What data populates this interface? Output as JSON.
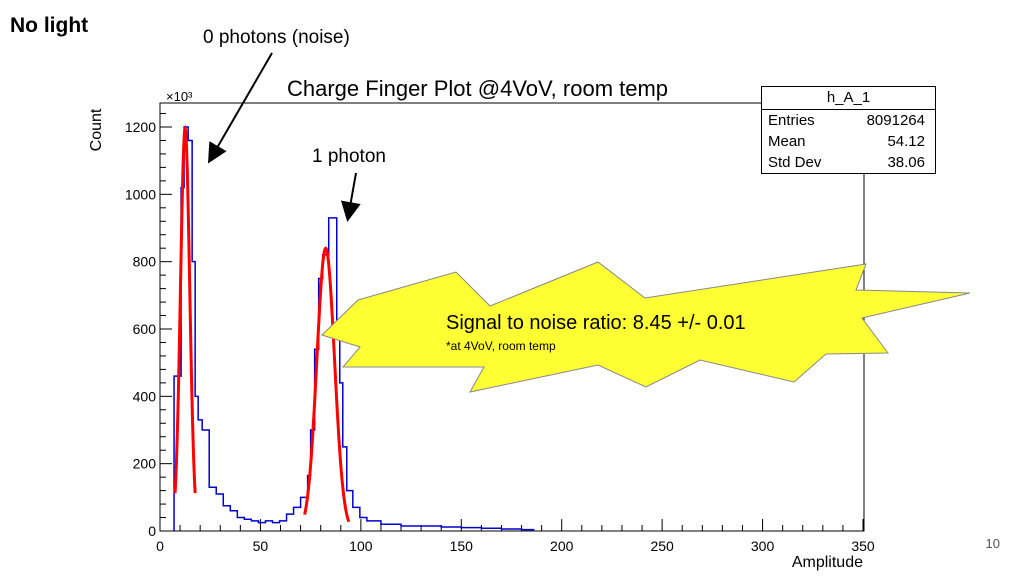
{
  "slide": {
    "title": "No light",
    "page_number": "10"
  },
  "annotations": {
    "noise_label": "0 photons (noise)",
    "photon_label": "1 photon"
  },
  "callout": {
    "main": "Signal to noise ratio: 8.45 +/- 0.01",
    "note": "*at 4VoV, room temp",
    "fill_color": "#ffff33"
  },
  "stats_box": {
    "name": "h_A_1",
    "rows": [
      {
        "label": "Entries",
        "value": "8091264"
      },
      {
        "label": "Mean",
        "value": "54.12"
      },
      {
        "label": "Std Dev",
        "value": "38.06"
      }
    ]
  },
  "chart_data": {
    "type": "histogram",
    "title": "Charge Finger Plot @4VoV, room temp",
    "xlabel": "Amplitude",
    "ylabel": "Count",
    "y_multiplier": "×10³",
    "xlim": [
      0,
      350
    ],
    "ylim": [
      0,
      1300
    ],
    "x_ticks": [
      0,
      50,
      100,
      150,
      200,
      250,
      300,
      350
    ],
    "y_ticks": [
      0,
      200,
      400,
      600,
      800,
      1000,
      1200
    ],
    "histogram_color": "#0000cc",
    "fit_color": "#ff0000",
    "bin_width": 3.5,
    "bins": [
      {
        "x": 7,
        "y": 0
      },
      {
        "x": 7,
        "y": 460
      },
      {
        "x": 10.5,
        "y": 1020
      },
      {
        "x": 12,
        "y": 1200
      },
      {
        "x": 14,
        "y": 1160
      },
      {
        "x": 16,
        "y": 800
      },
      {
        "x": 17.5,
        "y": 400
      },
      {
        "x": 19,
        "y": 330
      },
      {
        "x": 21,
        "y": 300
      },
      {
        "x": 24.5,
        "y": 130
      },
      {
        "x": 28,
        "y": 110
      },
      {
        "x": 31.5,
        "y": 75
      },
      {
        "x": 35,
        "y": 60
      },
      {
        "x": 38.5,
        "y": 40
      },
      {
        "x": 42,
        "y": 35
      },
      {
        "x": 45.5,
        "y": 30
      },
      {
        "x": 49,
        "y": 25
      },
      {
        "x": 52.5,
        "y": 30
      },
      {
        "x": 56,
        "y": 25
      },
      {
        "x": 59.5,
        "y": 30
      },
      {
        "x": 63,
        "y": 50
      },
      {
        "x": 66.5,
        "y": 70
      },
      {
        "x": 70,
        "y": 100
      },
      {
        "x": 73.5,
        "y": 165
      },
      {
        "x": 75,
        "y": 300
      },
      {
        "x": 77,
        "y": 540
      },
      {
        "x": 79,
        "y": 750
      },
      {
        "x": 81,
        "y": 820
      },
      {
        "x": 84,
        "y": 930
      },
      {
        "x": 88,
        "y": 600
      },
      {
        "x": 89.5,
        "y": 440
      },
      {
        "x": 91,
        "y": 250
      },
      {
        "x": 93,
        "y": 120
      },
      {
        "x": 96,
        "y": 70
      },
      {
        "x": 99.5,
        "y": 40
      },
      {
        "x": 103,
        "y": 30
      },
      {
        "x": 110,
        "y": 20
      },
      {
        "x": 120,
        "y": 15
      },
      {
        "x": 130,
        "y": 15
      },
      {
        "x": 140,
        "y": 12
      },
      {
        "x": 150,
        "y": 10
      },
      {
        "x": 160,
        "y": 8
      },
      {
        "x": 170,
        "y": 6
      },
      {
        "x": 180,
        "y": 4
      },
      {
        "x": 186,
        "y": 0
      }
    ],
    "fits": [
      {
        "name": "noise_peak",
        "mean": 12.5,
        "sigma": 2.3,
        "amplitude": 1195,
        "range": [
          7.5,
          17.5
        ]
      },
      {
        "name": "one_photon_peak",
        "mean": 82.5,
        "sigma": 4.4,
        "amplitude": 840,
        "range": [
          72,
          94
        ]
      }
    ]
  }
}
